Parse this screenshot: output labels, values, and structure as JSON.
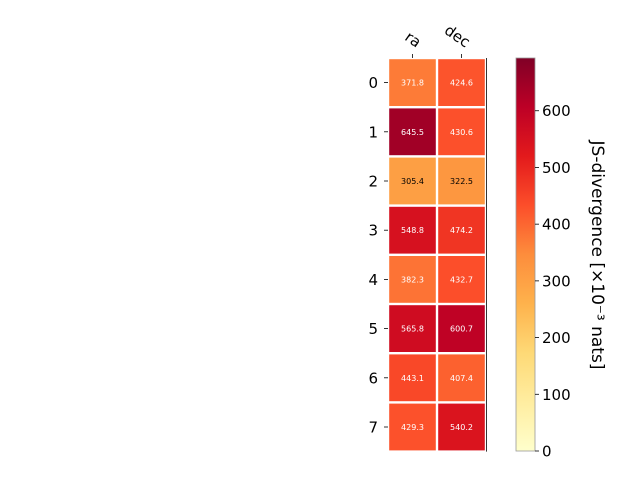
{
  "chart_data": {
    "type": "heatmap",
    "x_categories": [
      "ra",
      "dec"
    ],
    "y_categories": [
      "0",
      "1",
      "2",
      "3",
      "4",
      "5",
      "6",
      "7"
    ],
    "values": [
      [
        371.8,
        424.6
      ],
      [
        645.5,
        430.6
      ],
      [
        305.4,
        322.5
      ],
      [
        548.8,
        474.2
      ],
      [
        382.3,
        432.7
      ],
      [
        565.8,
        600.7
      ],
      [
        443.1,
        407.4
      ],
      [
        429.3,
        540.2
      ]
    ],
    "cell_labels": [
      [
        "371.8",
        "424.6"
      ],
      [
        "645.5",
        "430.6"
      ],
      [
        "305.4",
        "322.5"
      ],
      [
        "548.8",
        "474.2"
      ],
      [
        "382.3",
        "432.7"
      ],
      [
        "565.8",
        "600.7"
      ],
      [
        "443.1",
        "407.4"
      ],
      [
        "429.3",
        "540.2"
      ]
    ],
    "colorbar": {
      "label": "JS-divergence [×10⁻³ nats]",
      "range": [
        0,
        693
      ],
      "ticks": [
        "0",
        "100",
        "200",
        "300",
        "400",
        "500",
        "600"
      ],
      "tick_values": [
        0,
        100,
        200,
        300,
        400,
        500,
        600
      ],
      "colormap": "YlOrRd"
    },
    "grid": false
  }
}
